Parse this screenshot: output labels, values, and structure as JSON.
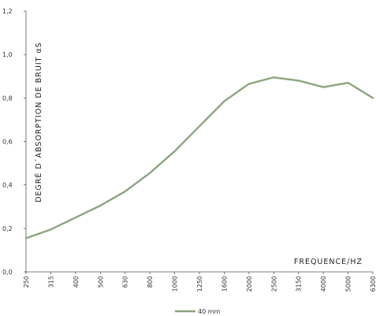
{
  "chart_data": {
    "type": "line",
    "x_label": "FREQUENCE/HZ",
    "y_label": "DEGRÉ D´ABSORPTION DE BRUIT αS",
    "categories": [
      "250",
      "315",
      "400",
      "500",
      "630",
      "800",
      "1000",
      "1250",
      "1600",
      "2000",
      "2500",
      "3150",
      "4000",
      "5000",
      "6300"
    ],
    "y_ticks": [
      "0,0",
      "0,2",
      "0,4",
      "0,6",
      "0,8",
      "1,0",
      "1,2"
    ],
    "ylim": [
      0,
      1.2
    ],
    "grid": false,
    "legend_position": "bottom-center",
    "series": [
      {
        "name": "40 mm",
        "color": "#8ba57f",
        "values": [
          0.155,
          0.195,
          0.25,
          0.305,
          0.37,
          0.455,
          0.555,
          0.67,
          0.785,
          0.865,
          0.895,
          0.88,
          0.85,
          0.87,
          0.8
        ]
      }
    ]
  }
}
